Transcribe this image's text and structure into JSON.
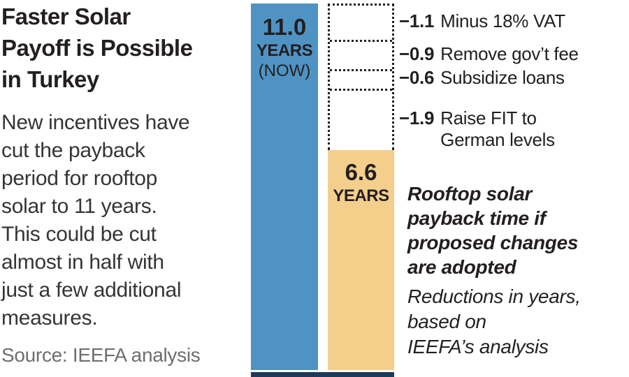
{
  "chart_data": {
    "type": "bar",
    "title": "Faster Solar Payoff is Possible in Turkey",
    "categories": [
      "Now",
      "If proposed changes are adopted"
    ],
    "values": [
      11.0,
      6.6
    ],
    "unit": "years",
    "ylim": [
      0,
      11
    ],
    "reductions": [
      {
        "value": -1.1,
        "label": "Minus 18% VAT"
      },
      {
        "value": -0.9,
        "label": "Remove gov’t fee"
      },
      {
        "value": -0.6,
        "label": "Subsidize loans"
      },
      {
        "value": -1.9,
        "label": "Raise FIT to German levels"
      }
    ],
    "annotations": [
      "Rooftop solar payback time if proposed changes are adopted",
      "Reductions in years, based on IEEFA’s analysis"
    ],
    "colors": {
      "now_bar": "#4F93C4",
      "future_bar": "#F4CF8C",
      "baseline_strip": "#1D3A5A",
      "text_dark": "#231F20",
      "text_gray": "#6D6E71"
    }
  },
  "left": {
    "title_lines": [
      "Faster Solar",
      "Payoff is Possible",
      "in Turkey"
    ],
    "body_lines": [
      "New incentives have",
      "cut the payback",
      "period for rooftop",
      "solar to 11 years.",
      "This could be cut",
      "almost in half with",
      "just a few additional",
      "measures."
    ],
    "source": "Source: IEEFA analysis"
  },
  "now_bar": {
    "value": "11.0",
    "unit": "YEARS",
    "note": "(NOW)"
  },
  "future_bar": {
    "value": "6.6",
    "unit": "YEARS"
  },
  "reductions": [
    {
      "value": "−1.1",
      "label": "Minus 18% VAT"
    },
    {
      "value": "−0.9",
      "label": "Remove gov’t fee"
    },
    {
      "value": "−0.6",
      "label": "Subsidize loans"
    },
    {
      "value": "−1.9",
      "label_line1": "Raise FIT to",
      "label_line2": "German levels"
    }
  ],
  "annotation": {
    "bold_lines": [
      "Rooftop solar",
      "payback time if",
      "proposed changes",
      "are adopted"
    ],
    "italic_lines": [
      "Reductions in years,",
      "based on",
      "IEEFA’s analysis"
    ]
  }
}
